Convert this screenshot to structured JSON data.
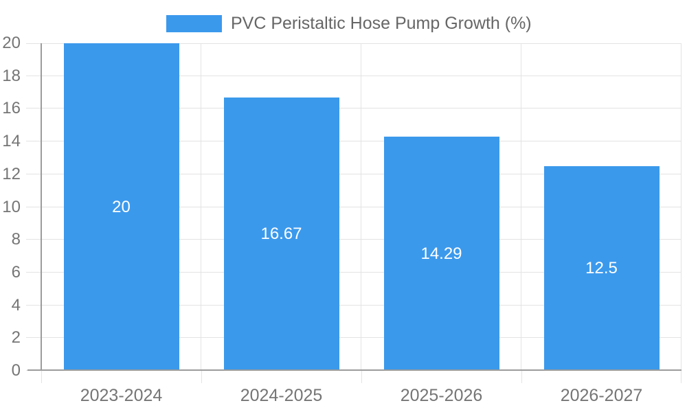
{
  "chart_data": {
    "type": "bar",
    "legend_label": "PVC Peristaltic Hose Pump Growth (%)",
    "legend_position": "top",
    "categories": [
      "2023-2024",
      "2024-2025",
      "2025-2026",
      "2026-2027"
    ],
    "values": [
      20,
      16.67,
      14.29,
      12.5
    ],
    "bar_labels": [
      "20",
      "16.67",
      "14.29",
      "12.5"
    ],
    "ylim": [
      0,
      20
    ],
    "ytick_step": 2,
    "yticks": [
      0,
      2,
      4,
      6,
      8,
      10,
      12,
      14,
      16,
      18,
      20
    ],
    "grid": true,
    "xlabel": "",
    "ylabel": "",
    "colors": {
      "bar": "#3b99ec",
      "grid": "#e3e3e3",
      "axis": "#9b9b9b",
      "tick_label": "#757575",
      "legend_text": "#666666",
      "bar_label": "#ffffff",
      "background": "#ffffff"
    }
  }
}
